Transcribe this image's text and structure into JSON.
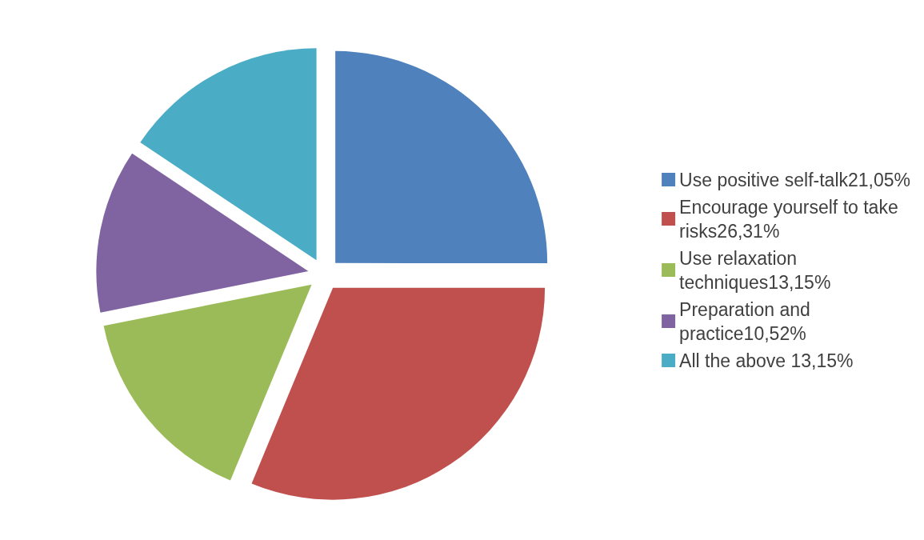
{
  "chart_data": {
    "type": "pie",
    "categories": [
      "Use positive self-talk21,05%",
      "Encourage yourself to take risks26,31%",
      "Use relaxation techniques13,15%",
      "Preparation and practice10,52%",
      "All the above 13,15%"
    ],
    "values": [
      21.05,
      26.31,
      13.15,
      10.52,
      13.15
    ],
    "colors": [
      "#4f81bd",
      "#c0504d",
      "#9bbb59",
      "#8064a2",
      "#4bacc6"
    ],
    "legend": "right"
  }
}
